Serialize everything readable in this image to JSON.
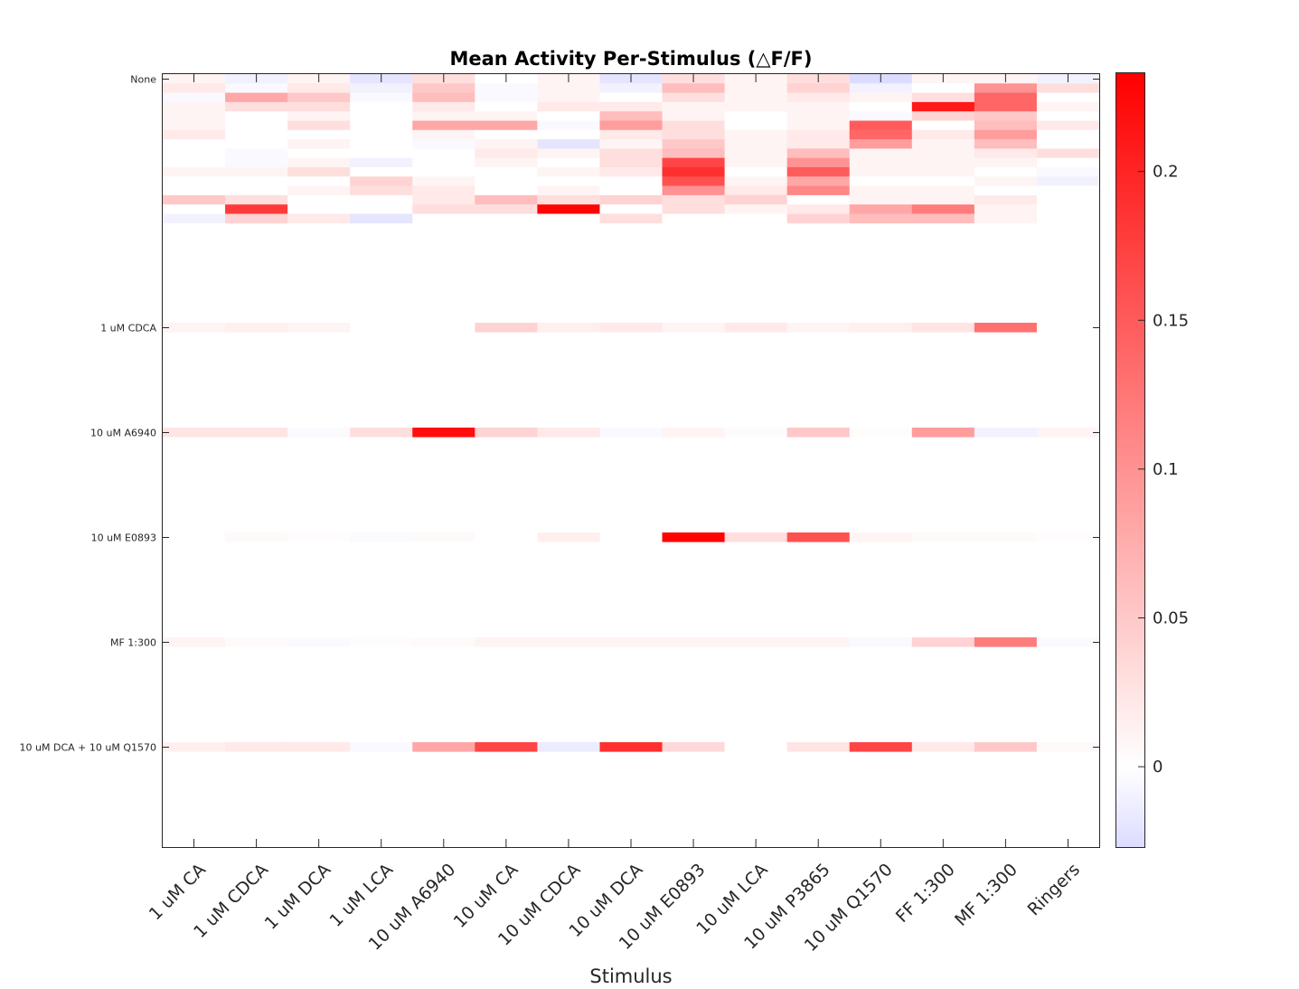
{
  "chart_data": {
    "type": "heatmap",
    "title": "Mean Activity Per-Stimulus (△F/F)",
    "xlabel": "Stimulus",
    "ylabel": "",
    "x_categories": [
      "1 uM CA",
      "1 uM CDCA",
      "1 uM DCA",
      "1 uM LCA",
      "10 uM A6940",
      "10 uM CA",
      "10 uM CDCA",
      "10 uM DCA",
      "10 uM E0893",
      "10 uM LCA",
      "10 uM P3865",
      "10 uM Q1570",
      "FF 1:300",
      "MF 1:300",
      "Ringers"
    ],
    "y_tick_labels": [
      "None",
      "1 uM CDCA",
      "10 uM A6940",
      "10 uM E0893",
      "MF 1:300",
      "10 uM DCA + 10 uM Q1570"
    ],
    "colorbar": {
      "range": [
        -0.027,
        0.233
      ],
      "ticks": [
        0,
        0.05,
        0.1,
        0.15,
        0.2
      ],
      "tick_labels": [
        "0",
        "0.05",
        "0.1",
        "0.15",
        "0.2"
      ],
      "colormap": "blue-white-red",
      "colors": {
        "low": "#dcdcff",
        "zero": "#ffffff",
        "high": "#ff0000"
      }
    },
    "groups": [
      {
        "label": "None",
        "rows": [
          [
            0.01,
            -0.01,
            0.01,
            -0.02,
            0.03,
            0.0,
            0.01,
            -0.02,
            0.03,
            0.01,
            0.03,
            -0.03,
            0.01,
            0.01,
            -0.01
          ],
          [
            0.02,
            -0.005,
            0.02,
            -0.01,
            0.05,
            -0.005,
            0.01,
            -0.01,
            0.06,
            0.01,
            0.04,
            -0.01,
            0.0,
            0.1,
            0.03
          ],
          [
            -0.005,
            0.08,
            0.05,
            -0.005,
            0.06,
            -0.005,
            0.01,
            0.0,
            0.03,
            0.01,
            0.02,
            0.01,
            0.03,
            0.14,
            0.0
          ],
          [
            0.01,
            0.03,
            0.03,
            0.0,
            0.02,
            0.0,
            0.02,
            0.02,
            0.01,
            0.01,
            0.01,
            0.0,
            0.21,
            0.14,
            0.01
          ],
          [
            0.01,
            0.0,
            0.01,
            0.0,
            0.01,
            0.01,
            0.0,
            0.06,
            0.01,
            0.0,
            0.01,
            -0.005,
            0.04,
            0.05,
            0.0
          ],
          [
            0.01,
            0.0,
            0.03,
            0.0,
            0.08,
            0.08,
            -0.005,
            0.09,
            0.03,
            0.0,
            0.01,
            0.15,
            0.0,
            0.06,
            0.02
          ],
          [
            0.02,
            0.0,
            0.0,
            0.0,
            0.01,
            0.0,
            0.0,
            0.02,
            0.03,
            0.01,
            0.02,
            0.14,
            0.02,
            0.09,
            0.0
          ],
          [
            0.0,
            0.0,
            0.01,
            0.0,
            -0.005,
            0.01,
            -0.02,
            0.01,
            0.05,
            0.01,
            0.02,
            0.09,
            0.01,
            0.06,
            0.0
          ],
          [
            0.0,
            -0.005,
            0.0,
            0.0,
            0.0,
            0.02,
            0.01,
            0.03,
            0.06,
            0.01,
            0.06,
            0.01,
            0.01,
            0.02,
            0.03
          ],
          [
            0.0,
            -0.005,
            0.01,
            -0.01,
            0.0,
            0.01,
            0.0,
            0.03,
            0.17,
            0.01,
            0.1,
            0.01,
            0.01,
            0.01,
            0.0
          ],
          [
            0.01,
            0.01,
            0.03,
            0.0,
            0.0,
            0.0,
            0.01,
            0.02,
            0.19,
            0.0,
            0.15,
            0.01,
            0.01,
            0.0,
            -0.005
          ],
          [
            0.0,
            0.0,
            0.0,
            0.04,
            0.01,
            0.0,
            0.0,
            0.0,
            0.16,
            0.01,
            0.08,
            0.0,
            0.0,
            0.01,
            -0.01
          ],
          [
            0.0,
            0.0,
            0.01,
            0.03,
            0.02,
            0.0,
            0.01,
            0.0,
            0.1,
            0.02,
            0.11,
            0.01,
            0.01,
            0.0,
            0.0
          ],
          [
            0.05,
            0.03,
            0.0,
            0.0,
            0.02,
            0.06,
            0.03,
            0.04,
            0.03,
            0.04,
            0.0,
            0.01,
            0.01,
            0.02,
            0.0
          ],
          [
            0.0,
            0.18,
            0.0,
            0.0,
            0.03,
            0.03,
            0.23,
            0.0,
            0.03,
            0.01,
            0.02,
            0.08,
            0.12,
            0.01,
            0.0
          ],
          [
            -0.01,
            0.04,
            0.02,
            -0.02,
            0.0,
            0.0,
            0.0,
            0.03,
            0.0,
            0.0,
            0.04,
            0.06,
            0.06,
            0.01,
            0.0
          ]
        ]
      },
      {
        "label": "1 uM CDCA",
        "rows": [
          [
            0.01,
            0.015,
            0.01,
            0.0,
            0.0,
            0.04,
            0.015,
            0.02,
            0.01,
            0.02,
            0.01,
            0.015,
            0.025,
            0.13,
            0.0
          ]
        ]
      },
      {
        "label": "10 uM A6940",
        "rows": [
          [
            0.025,
            0.025,
            -0.003,
            0.03,
            0.22,
            0.04,
            0.02,
            -0.005,
            0.01,
            -0.002,
            0.05,
            0.003,
            0.09,
            -0.01,
            0.01
          ]
        ]
      },
      {
        "label": "10 uM E0893",
        "rows": [
          [
            0.0,
            0.005,
            0.003,
            -0.003,
            0.005,
            0.0,
            0.015,
            0.0,
            0.23,
            0.03,
            0.16,
            0.01,
            0.005,
            0.005,
            0.003
          ]
        ]
      },
      {
        "label": "MF 1:300",
        "rows": [
          [
            0.01,
            0.005,
            -0.003,
            0.003,
            0.005,
            0.01,
            0.01,
            0.01,
            0.01,
            0.01,
            0.01,
            -0.005,
            0.04,
            0.12,
            -0.003
          ]
        ]
      },
      {
        "label": "10 uM DCA + 10 uM Q1570",
        "rows": [
          [
            0.015,
            0.02,
            0.02,
            -0.005,
            0.08,
            0.17,
            -0.015,
            0.19,
            0.035,
            0.0,
            0.025,
            0.17,
            0.02,
            0.05,
            0.005
          ]
        ]
      }
    ]
  }
}
